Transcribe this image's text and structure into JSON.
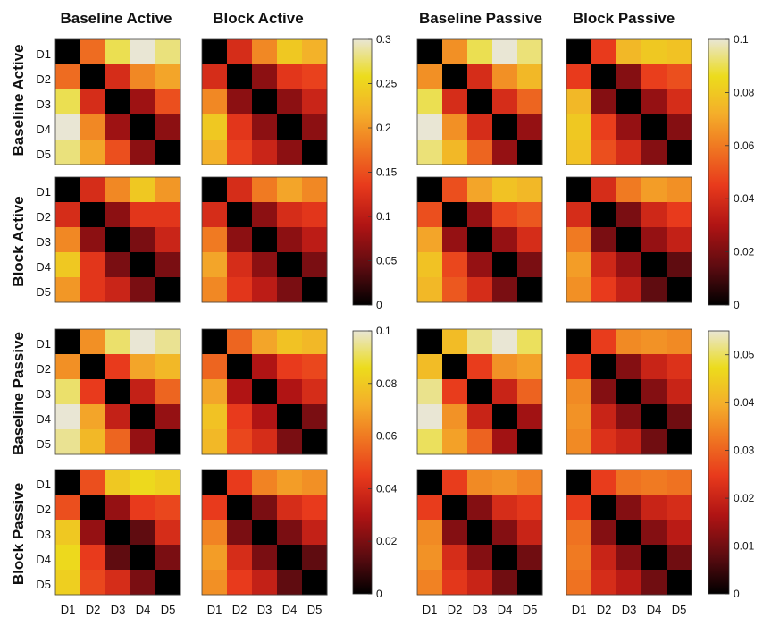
{
  "figure": {
    "column_titles": [
      "Baseline Active",
      "Block Active",
      "Baseline Passive",
      "Block Passive"
    ],
    "row_titles": [
      "Baseline Active",
      "Block Active",
      "Baseline Passive",
      "Block Passive"
    ],
    "tick_labels": [
      "D1",
      "D2",
      "D3",
      "D4",
      "D5"
    ],
    "colormap": [
      "#000000",
      "#5a0b10",
      "#b01414",
      "#e83a1c",
      "#f07a22",
      "#f4ae2a",
      "#ecdc1c",
      "#e9e6d4"
    ]
  },
  "colorbars": [
    {
      "range": [
        0,
        0.3
      ],
      "ticks": [
        "0",
        "0.05",
        "0.1",
        "0.15",
        "0.2",
        "0.25",
        "0.3"
      ]
    },
    {
      "range": [
        0,
        0.1
      ],
      "ticks": [
        "0",
        "0.02",
        "0.04",
        "0.06",
        "0.08",
        "0.1"
      ]
    },
    {
      "range": [
        0,
        0.1
      ],
      "ticks": [
        "0",
        "0.02",
        "0.04",
        "0.06",
        "0.08",
        "0.1"
      ]
    },
    {
      "range": [
        0,
        0.055
      ],
      "ticks": [
        "0",
        "0.01",
        "0.02",
        "0.03",
        "0.04",
        "0.05"
      ]
    }
  ],
  "chart_data": {
    "type": "heatmap",
    "rows": [
      "D1",
      "D2",
      "D3",
      "D4",
      "D5"
    ],
    "cols": [
      "D1",
      "D2",
      "D3",
      "D4",
      "D5"
    ],
    "panels": [
      {
        "row": "Baseline Active",
        "col": "Baseline Active",
        "vmax": 0.3,
        "values": [
          [
            0,
            0.17,
            0.27,
            0.3,
            0.28
          ],
          [
            0.17,
            0,
            0.12,
            0.19,
            0.21
          ],
          [
            0.27,
            0.12,
            0,
            0.08,
            0.15
          ],
          [
            0.3,
            0.19,
            0.08,
            0,
            0.07
          ],
          [
            0.28,
            0.21,
            0.15,
            0.07,
            0
          ]
        ]
      },
      {
        "row": "Baseline Active",
        "col": "Block Active",
        "vmax": 0.3,
        "values": [
          [
            0,
            0.12,
            0.19,
            0.24,
            0.22
          ],
          [
            0.12,
            0,
            0.07,
            0.13,
            0.14
          ],
          [
            0.19,
            0.07,
            0,
            0.07,
            0.11
          ],
          [
            0.24,
            0.13,
            0.07,
            0,
            0.07
          ],
          [
            0.22,
            0.14,
            0.11,
            0.07,
            0
          ]
        ]
      },
      {
        "row": "Baseline Active",
        "col": "Baseline Passive",
        "vmax": 0.1,
        "values": [
          [
            0,
            0.065,
            0.09,
            0.1,
            0.093
          ],
          [
            0.065,
            0,
            0.04,
            0.065,
            0.075
          ],
          [
            0.09,
            0.04,
            0,
            0.04,
            0.055
          ],
          [
            0.1,
            0.065,
            0.04,
            0,
            0.025
          ],
          [
            0.093,
            0.075,
            0.055,
            0.025,
            0
          ]
        ]
      },
      {
        "row": "Baseline Active",
        "col": "Block Passive",
        "vmax": 0.1,
        "values": [
          [
            0,
            0.045,
            0.075,
            0.08,
            0.078
          ],
          [
            0.045,
            0,
            0.022,
            0.046,
            0.05
          ],
          [
            0.075,
            0.022,
            0,
            0.025,
            0.04
          ],
          [
            0.08,
            0.046,
            0.025,
            0,
            0.022
          ],
          [
            0.078,
            0.05,
            0.04,
            0.022,
            0
          ]
        ]
      },
      {
        "row": "Block Active",
        "col": "Baseline Active",
        "vmax": 0.3,
        "values": [
          [
            0,
            0.12,
            0.19,
            0.24,
            0.2
          ],
          [
            0.12,
            0,
            0.07,
            0.13,
            0.13
          ],
          [
            0.19,
            0.07,
            0,
            0.06,
            0.11
          ],
          [
            0.24,
            0.13,
            0.06,
            0,
            0.06
          ],
          [
            0.2,
            0.13,
            0.11,
            0.06,
            0
          ]
        ]
      },
      {
        "row": "Block Active",
        "col": "Block Active",
        "vmax": 0.3,
        "values": [
          [
            0,
            0.12,
            0.18,
            0.21,
            0.19
          ],
          [
            0.12,
            0,
            0.07,
            0.12,
            0.13
          ],
          [
            0.18,
            0.07,
            0,
            0.07,
            0.1
          ],
          [
            0.21,
            0.12,
            0.07,
            0,
            0.06
          ],
          [
            0.19,
            0.13,
            0.1,
            0.06,
            0
          ]
        ]
      },
      {
        "row": "Block Active",
        "col": "Baseline Passive",
        "vmax": 0.1,
        "values": [
          [
            0,
            0.05,
            0.07,
            0.078,
            0.075
          ],
          [
            0.05,
            0,
            0.025,
            0.048,
            0.052
          ],
          [
            0.07,
            0.025,
            0,
            0.025,
            0.04
          ],
          [
            0.078,
            0.048,
            0.025,
            0,
            0.02
          ],
          [
            0.075,
            0.052,
            0.04,
            0.02,
            0
          ]
        ]
      },
      {
        "row": "Block Active",
        "col": "Block Passive",
        "vmax": 0.1,
        "values": [
          [
            0,
            0.04,
            0.06,
            0.068,
            0.065
          ],
          [
            0.04,
            0,
            0.02,
            0.038,
            0.045
          ],
          [
            0.06,
            0.02,
            0,
            0.025,
            0.035
          ],
          [
            0.068,
            0.038,
            0.025,
            0,
            0.015
          ],
          [
            0.065,
            0.045,
            0.035,
            0.015,
            0
          ]
        ]
      },
      {
        "row": "Baseline Passive",
        "col": "Baseline Active",
        "vmax": 0.1,
        "values": [
          [
            0,
            0.065,
            0.092,
            0.1,
            0.095
          ],
          [
            0.065,
            0,
            0.045,
            0.07,
            0.075
          ],
          [
            0.092,
            0.045,
            0,
            0.035,
            0.055
          ],
          [
            0.1,
            0.07,
            0.035,
            0,
            0.025
          ],
          [
            0.095,
            0.075,
            0.055,
            0.025,
            0
          ]
        ]
      },
      {
        "row": "Baseline Passive",
        "col": "Block Active",
        "vmax": 0.1,
        "values": [
          [
            0,
            0.055,
            0.07,
            0.078,
            0.075
          ],
          [
            0.055,
            0,
            0.03,
            0.045,
            0.048
          ],
          [
            0.07,
            0.03,
            0,
            0.03,
            0.04
          ],
          [
            0.078,
            0.045,
            0.03,
            0,
            0.02
          ],
          [
            0.075,
            0.048,
            0.04,
            0.02,
            0
          ]
        ]
      },
      {
        "row": "Baseline Passive",
        "col": "Baseline Passive",
        "vmax": 0.055,
        "values": [
          [
            0,
            0.042,
            0.052,
            0.055,
            0.05
          ],
          [
            0.042,
            0,
            0.025,
            0.036,
            0.038
          ],
          [
            0.052,
            0.025,
            0,
            0.02,
            0.03
          ],
          [
            0.055,
            0.036,
            0.02,
            0,
            0.015
          ],
          [
            0.05,
            0.038,
            0.03,
            0.015,
            0
          ]
        ]
      },
      {
        "row": "Baseline Passive",
        "col": "Block Passive",
        "vmax": 0.055,
        "values": [
          [
            0,
            0.025,
            0.035,
            0.036,
            0.035
          ],
          [
            0.025,
            0,
            0.012,
            0.02,
            0.023
          ],
          [
            0.035,
            0.012,
            0,
            0.012,
            0.02
          ],
          [
            0.036,
            0.02,
            0.012,
            0,
            0.01
          ],
          [
            0.035,
            0.023,
            0.02,
            0.01,
            0
          ]
        ]
      },
      {
        "row": "Block Passive",
        "col": "Baseline Active",
        "vmax": 0.1,
        "values": [
          [
            0,
            0.05,
            0.08,
            0.085,
            0.082
          ],
          [
            0.05,
            0,
            0.025,
            0.045,
            0.048
          ],
          [
            0.08,
            0.025,
            0,
            0.015,
            0.04
          ],
          [
            0.085,
            0.045,
            0.015,
            0,
            0.02
          ],
          [
            0.082,
            0.048,
            0.04,
            0.02,
            0
          ]
        ]
      },
      {
        "row": "Block Passive",
        "col": "Block Active",
        "vmax": 0.1,
        "values": [
          [
            0,
            0.045,
            0.062,
            0.068,
            0.065
          ],
          [
            0.045,
            0,
            0.02,
            0.04,
            0.045
          ],
          [
            0.062,
            0.02,
            0,
            0.02,
            0.035
          ],
          [
            0.068,
            0.04,
            0.02,
            0,
            0.015
          ],
          [
            0.065,
            0.045,
            0.035,
            0.015,
            0
          ]
        ]
      },
      {
        "row": "Block Passive",
        "col": "Baseline Passive",
        "vmax": 0.055,
        "values": [
          [
            0,
            0.025,
            0.035,
            0.036,
            0.034
          ],
          [
            0.025,
            0,
            0.012,
            0.022,
            0.024
          ],
          [
            0.035,
            0.012,
            0,
            0.012,
            0.02
          ],
          [
            0.036,
            0.022,
            0.012,
            0,
            0.01
          ],
          [
            0.034,
            0.024,
            0.02,
            0.01,
            0
          ]
        ]
      },
      {
        "row": "Block Passive",
        "col": "Block Passive",
        "vmax": 0.055,
        "values": [
          [
            0,
            0.025,
            0.032,
            0.033,
            0.032
          ],
          [
            0.025,
            0,
            0.012,
            0.02,
            0.022
          ],
          [
            0.032,
            0.012,
            0,
            0.012,
            0.018
          ],
          [
            0.033,
            0.02,
            0.012,
            0,
            0.01
          ],
          [
            0.032,
            0.022,
            0.018,
            0.01,
            0
          ]
        ]
      }
    ]
  }
}
